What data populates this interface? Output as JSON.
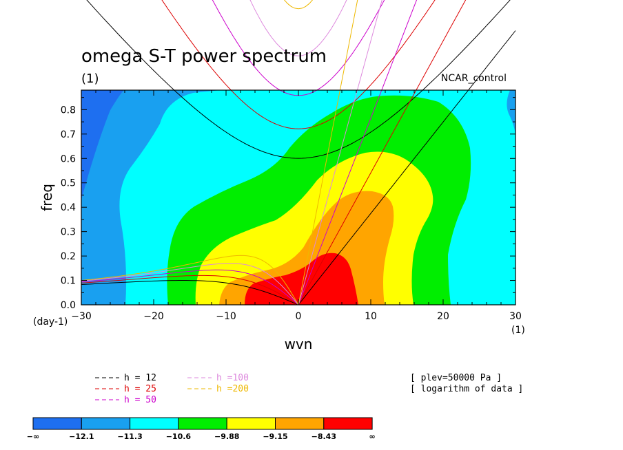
{
  "chart_data": {
    "type": "heatmap",
    "title": "omega S-T power spectrum",
    "subtitle": "(1)",
    "case_label": "NCAR_control",
    "xlabel": "wvn",
    "ylabel": "freq",
    "x_unit_label": "(1)",
    "y_unit_label": "(day-1)",
    "xlim": [
      -30,
      30
    ],
    "ylim": [
      0,
      0.88
    ],
    "x_ticks": [
      -30,
      -20,
      -10,
      0,
      10,
      20,
      30
    ],
    "y_ticks": [
      0.0,
      0.1,
      0.2,
      0.3,
      0.4,
      0.5,
      0.6,
      0.7,
      0.8
    ],
    "x_tick_labels": [
      "−30",
      "−20",
      "−10",
      "0",
      "10",
      "20",
      "30"
    ],
    "y_tick_labels": [
      "0.0",
      "0.1",
      "0.2",
      "0.3",
      "0.4",
      "0.5",
      "0.6",
      "0.7",
      "0.8"
    ],
    "info": [
      "[ plev=50000 Pa ]",
      "[ logarithm of data ]"
    ],
    "contour_levels": [
      "−∞",
      "−12.1",
      "−11.3",
      "−10.6",
      "−9.88",
      "−9.15",
      "−8.43",
      "∞"
    ],
    "level_colors": [
      "#1e6ff0",
      "#19a0f0",
      "#00ffff",
      "#00ee00",
      "#ffff00",
      "#ffa500",
      "#ff0000"
    ],
    "dispersion_curves": [
      {
        "name": "h = 12",
        "equivalent_depth": 12,
        "color": "#000000"
      },
      {
        "name": "h = 25",
        "equivalent_depth": 25,
        "color": "#dd0000"
      },
      {
        "name": "h = 50",
        "equivalent_depth": 50,
        "color": "#cc00cc"
      },
      {
        "name": "h =100",
        "equivalent_depth": 100,
        "color": "#dd88dd"
      },
      {
        "name": "h =200",
        "equivalent_depth": 200,
        "color": "#eeb800"
      }
    ]
  }
}
